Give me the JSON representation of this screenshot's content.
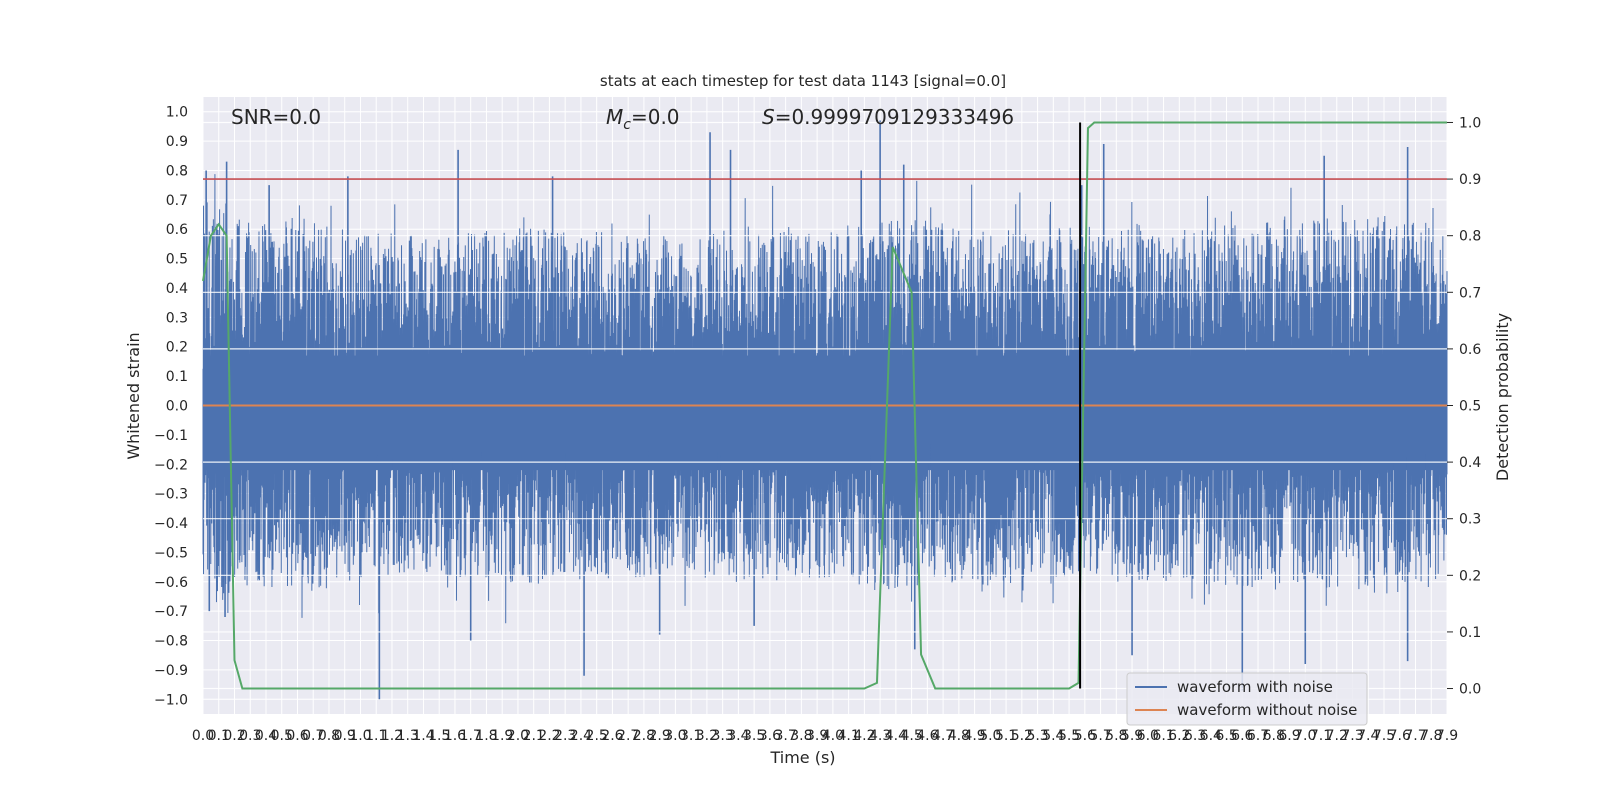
{
  "chart_data": {
    "type": "line",
    "title": "stats at each timestep for test data 1143 [signal=0.0]",
    "xlabel": "Time (s)",
    "ylabel_left": "Whitened strain",
    "ylabel_right": "Detection probability",
    "xlim": [
      0.0,
      7.9
    ],
    "ylim_left": [
      -1.05,
      1.05
    ],
    "ylim_right": [
      -0.045,
      1.045
    ],
    "x_ticks": [
      "0.0",
      "0.1",
      "0.2",
      "0.3",
      "0.4",
      "0.5",
      "0.6",
      "0.7",
      "0.8",
      "0.9",
      "1.0",
      "1.1",
      "1.2",
      "1.3",
      "1.4",
      "1.5",
      "1.6",
      "1.7",
      "1.8",
      "1.9",
      "2.0",
      "2.1",
      "2.2",
      "2.3",
      "2.4",
      "2.5",
      "2.6",
      "2.7",
      "2.8",
      "2.9",
      "3.0",
      "3.1",
      "3.2",
      "3.3",
      "3.4",
      "3.5",
      "3.6",
      "3.7",
      "3.8",
      "3.9",
      "4.0",
      "4.1",
      "4.2",
      "4.3",
      "4.4",
      "4.5",
      "4.6",
      "4.7",
      "4.8",
      "4.9",
      "5.0",
      "5.1",
      "5.2",
      "5.3",
      "5.4",
      "5.5",
      "5.6",
      "5.7",
      "5.8",
      "5.9",
      "6.0",
      "6.1",
      "6.2",
      "6.3",
      "6.4",
      "6.5",
      "6.6",
      "6.7",
      "6.8",
      "6.9",
      "7.0",
      "7.1",
      "7.2",
      "7.3",
      "7.4",
      "7.5",
      "7.6",
      "7.7",
      "7.8",
      "7.9"
    ],
    "y_ticks_left": [
      "1.0",
      "0.9",
      "0.8",
      "0.7",
      "0.6",
      "0.5",
      "0.4",
      "0.3",
      "0.2",
      "0.1",
      "0.0",
      "-0.1",
      "-0.2",
      "-0.3",
      "-0.4",
      "-0.5",
      "-0.6",
      "-0.7",
      "-0.8",
      "-0.9",
      "-1.0"
    ],
    "y_ticks_right": [
      "1.0",
      "0.9",
      "0.8",
      "0.7",
      "0.6",
      "0.5",
      "0.4",
      "0.3",
      "0.2",
      "0.1",
      "0.0"
    ],
    "annotations": {
      "snr": "SNR=0.0",
      "mc_symbol": "M",
      "mc_sub": "c",
      "mc_value": "=0.0",
      "s_symbol": "S",
      "s_value": "=0.9999709129333496"
    },
    "threshold_line": {
      "y_right": 0.9,
      "color": "#c44e52"
    },
    "marker_line": {
      "x": 5.57,
      "y_right": [
        0.0,
        1.0
      ],
      "color": "#000000"
    },
    "series": [
      {
        "name": "waveform with noise",
        "color": "#4c72b0",
        "note_style": "dense noise band",
        "envelope_upper": [
          [
            0.0,
            0.62
          ],
          [
            0.3,
            0.52
          ],
          [
            0.6,
            0.55
          ],
          [
            1.0,
            0.5
          ],
          [
            1.5,
            0.48
          ],
          [
            2.0,
            0.52
          ],
          [
            2.5,
            0.5
          ],
          [
            3.0,
            0.48
          ],
          [
            3.5,
            0.52
          ],
          [
            4.0,
            0.5
          ],
          [
            4.5,
            0.55
          ],
          [
            5.0,
            0.5
          ],
          [
            5.5,
            0.52
          ],
          [
            6.0,
            0.5
          ],
          [
            6.5,
            0.52
          ],
          [
            7.0,
            0.55
          ],
          [
            7.5,
            0.55
          ],
          [
            7.9,
            0.52
          ]
        ],
        "spikes_up": [
          [
            0.02,
            0.8
          ],
          [
            0.15,
            0.83
          ],
          [
            0.42,
            0.75
          ],
          [
            0.92,
            0.78
          ],
          [
            1.62,
            0.87
          ],
          [
            2.22,
            0.78
          ],
          [
            3.22,
            0.93
          ],
          [
            3.35,
            0.87
          ],
          [
            4.18,
            0.8
          ],
          [
            4.3,
            0.97
          ],
          [
            4.45,
            0.82
          ],
          [
            5.58,
            0.75
          ],
          [
            5.72,
            0.89
          ],
          [
            7.12,
            0.85
          ],
          [
            7.65,
            0.88
          ]
        ],
        "spikes_down": [
          [
            0.04,
            -0.7
          ],
          [
            0.14,
            -0.72
          ],
          [
            1.12,
            -1.0
          ],
          [
            1.7,
            -0.8
          ],
          [
            2.42,
            -0.92
          ],
          [
            2.9,
            -0.78
          ],
          [
            3.5,
            -0.75
          ],
          [
            4.52,
            -0.83
          ],
          [
            5.9,
            -0.85
          ],
          [
            6.6,
            -0.97
          ],
          [
            7.0,
            -0.88
          ],
          [
            7.65,
            -0.87
          ]
        ]
      },
      {
        "name": "waveform without noise",
        "color": "#dd8452",
        "x": [
          0.0,
          7.9
        ],
        "values": [
          0.0,
          0.0
        ]
      },
      {
        "name": "detection probability",
        "color": "#55a868",
        "axis": "right",
        "x": [
          0.0,
          0.05,
          0.1,
          0.15,
          0.2,
          0.25,
          1.0,
          1.5,
          1.7,
          1.75,
          2.5,
          3.5,
          4.0,
          4.2,
          4.28,
          4.38,
          4.5,
          4.56,
          4.65,
          5.0,
          5.5,
          5.56,
          5.62,
          5.66,
          5.74,
          5.8,
          7.9
        ],
        "values": [
          0.72,
          0.8,
          0.82,
          0.8,
          0.05,
          0.0,
          0.0,
          0.0,
          0.0,
          0.0,
          0.0,
          0.0,
          0.0,
          0.0,
          0.01,
          0.78,
          0.7,
          0.06,
          0.0,
          0.0,
          0.0,
          0.01,
          0.99,
          1.0,
          1.0,
          1.0,
          1.0
        ]
      }
    ],
    "legend": {
      "location": "lower right",
      "entries": [
        "waveform with noise",
        "waveform without noise"
      ]
    },
    "grid": true,
    "background": "#eaeaf2"
  }
}
